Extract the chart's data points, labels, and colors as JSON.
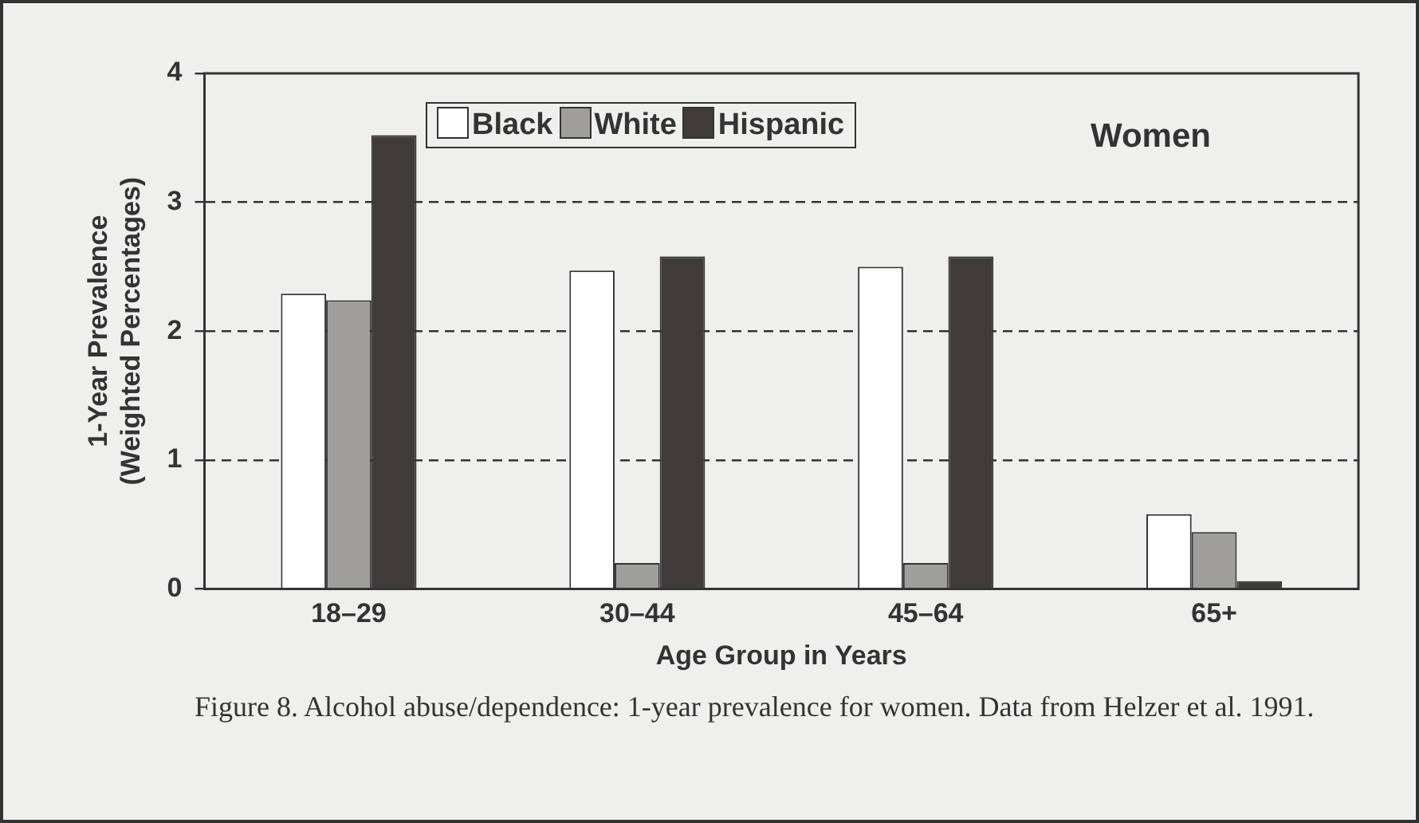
{
  "chart_data": {
    "type": "bar",
    "categories": [
      "18–29",
      "30–44",
      "45–64",
      "65+"
    ],
    "series": [
      {
        "name": "Black",
        "color": "#ffffff",
        "values": [
          2.29,
          2.47,
          2.5,
          0.58
        ]
      },
      {
        "name": "White",
        "color": "#a09e9c",
        "values": [
          2.24,
          0.2,
          0.2,
          0.44
        ]
      },
      {
        "name": "Hispanic",
        "color": "#403b3b",
        "values": [
          3.52,
          2.58,
          2.58,
          0.06
        ]
      }
    ],
    "xlabel": "Age Group in Years",
    "ylabel": "1-Year Prevalence\n(Weighted Percentages)",
    "ylim": [
      0,
      4
    ],
    "yticks": [
      0,
      1,
      2,
      3,
      4
    ],
    "grid": "y",
    "legend": "top",
    "annotations": [
      "Women",
      "Figure 8. Alcohol abuse/dependence: 1-year prevalence for women. Data from Helzer et al. 1991."
    ]
  }
}
